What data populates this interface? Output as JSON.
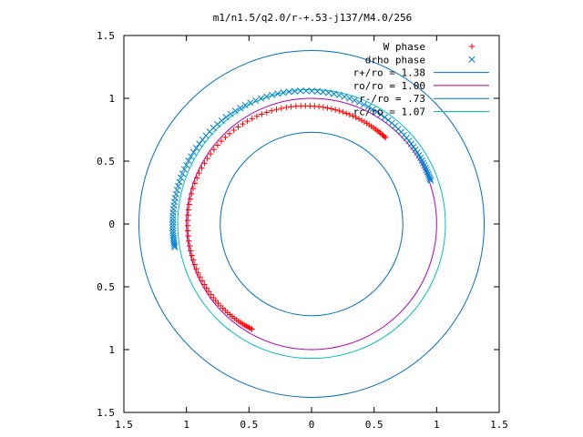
{
  "chart_data": {
    "type": "scatter",
    "title": "m1/n1.5/q2.0/r-+.53-j137/M4.0/256",
    "xlim": [
      -1.5,
      1.5
    ],
    "ylim": [
      -1.5,
      1.5
    ],
    "x_ticks": [
      {
        "v": -1.5,
        "label": "1.5"
      },
      {
        "v": -1,
        "label": "1"
      },
      {
        "v": -0.5,
        "label": "0.5"
      },
      {
        "v": 0,
        "label": "0"
      },
      {
        "v": 0.5,
        "label": "0.5"
      },
      {
        "v": 1,
        "label": "1"
      },
      {
        "v": 1.5,
        "label": "1.5"
      }
    ],
    "y_ticks": [
      {
        "v": 1.5,
        "label": "1.5"
      },
      {
        "v": 1,
        "label": "1"
      },
      {
        "v": 0.5,
        "label": "0.5"
      },
      {
        "v": 0,
        "label": "0"
      },
      {
        "v": -0.5,
        "label": "0.5"
      },
      {
        "v": -1,
        "label": "1"
      },
      {
        "v": -1.5,
        "label": "1.5"
      }
    ],
    "grid": false,
    "legend_position": "top-right",
    "series": [
      {
        "name": "W phase",
        "kind": "points",
        "marker": "plus",
        "color": "#ff0000",
        "arc": {
          "cx": -0.05,
          "cy": 0.0,
          "r": 0.94,
          "start_deg": 243,
          "end_deg": 47,
          "count": 100
        }
      },
      {
        "name": "drho phase",
        "kind": "points",
        "marker": "cross",
        "color": "#0080d0",
        "arc": {
          "cx": -0.05,
          "cy": 0.0,
          "r": 1.06,
          "start_deg": 190,
          "end_deg": 19,
          "count": 95
        }
      },
      {
        "name": "r+/ro = 1.38",
        "kind": "circle",
        "r": 1.38,
        "color": "#0070c0"
      },
      {
        "name": "ro/ro = 1.00",
        "kind": "circle",
        "r": 1.0,
        "color": "#b000b0"
      },
      {
        "name": "r-/ro = .73",
        "kind": "circle",
        "r": 0.73,
        "color": "#0070c0"
      },
      {
        "name": "rc/ro = 1.07",
        "kind": "circle",
        "r": 1.07,
        "color": "#00c0c0"
      }
    ]
  }
}
